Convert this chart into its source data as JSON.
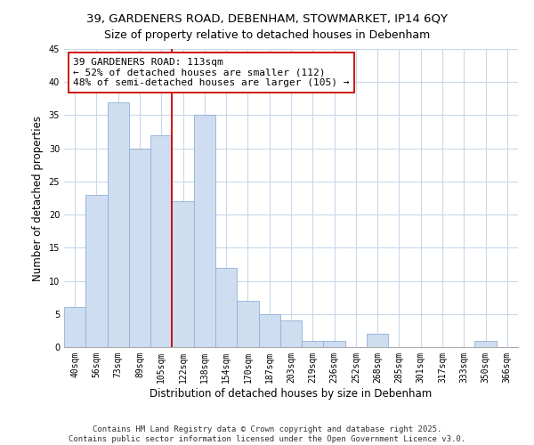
{
  "title_line1": "39, GARDENERS ROAD, DEBENHAM, STOWMARKET, IP14 6QY",
  "title_line2": "Size of property relative to detached houses in Debenham",
  "xlabel": "Distribution of detached houses by size in Debenham",
  "ylabel": "Number of detached properties",
  "bar_color": "#cfddf0",
  "bar_edge_color": "#8fb0d8",
  "bin_labels": [
    "40sqm",
    "56sqm",
    "73sqm",
    "89sqm",
    "105sqm",
    "122sqm",
    "138sqm",
    "154sqm",
    "170sqm",
    "187sqm",
    "203sqm",
    "219sqm",
    "236sqm",
    "252sqm",
    "268sqm",
    "285sqm",
    "301sqm",
    "317sqm",
    "333sqm",
    "350sqm",
    "366sqm"
  ],
  "bar_heights": [
    6,
    23,
    37,
    30,
    32,
    22,
    35,
    12,
    7,
    5,
    4,
    1,
    1,
    0,
    2,
    0,
    0,
    0,
    0,
    1,
    0
  ],
  "ylim": [
    0,
    45
  ],
  "yticks": [
    0,
    5,
    10,
    15,
    20,
    25,
    30,
    35,
    40,
    45
  ],
  "reference_line_x": 4.5,
  "reference_line_color": "#cc0000",
  "annotation_title": "39 GARDENERS ROAD: 113sqm",
  "annotation_line2": "← 52% of detached houses are smaller (112)",
  "annotation_line3": "48% of semi-detached houses are larger (105) →",
  "annotation_box_color": "#ffffff",
  "annotation_box_edge_color": "#cc0000",
  "footer_line1": "Contains HM Land Registry data © Crown copyright and database right 2025.",
  "footer_line2": "Contains public sector information licensed under the Open Government Licence v3.0.",
  "background_color": "#ffffff",
  "grid_color": "#c8d8ec",
  "title_fontsize": 9.5,
  "axis_label_fontsize": 8.5,
  "tick_fontsize": 7,
  "annotation_fontsize": 8,
  "footer_fontsize": 6.5
}
